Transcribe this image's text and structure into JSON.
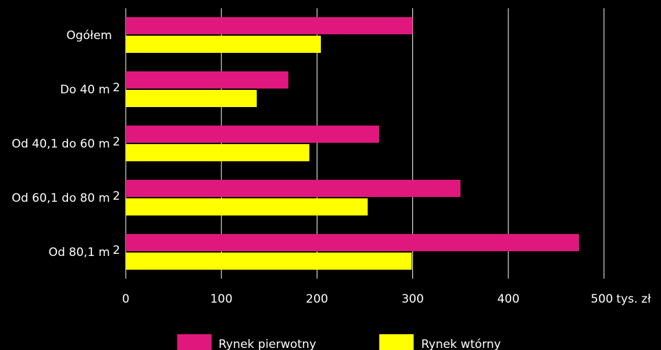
{
  "chart_data": {
    "type": "bar",
    "orientation": "horizontal",
    "categories": [
      "Ogółem",
      "Do 40 m²",
      "Od 40,1 do 60 m²",
      "Od 60,1 do 80 m²",
      "Od 80,1 m²"
    ],
    "category_labels": [
      "Ogółem",
      "Do 40 m",
      "Od 40,1 do 60 m",
      "Od 60,1 do 80 m",
      "Od 80,1 m"
    ],
    "category_superscripts": [
      "",
      "2",
      "2",
      "2",
      "2"
    ],
    "series": [
      {
        "name": "Rynek pierwotny",
        "color": "#e0187e",
        "values": [
          300,
          170,
          265,
          350,
          474
        ]
      },
      {
        "name": "Rynek wtórny",
        "color": "#ffff00",
        "values": [
          204,
          137,
          192,
          253,
          299
        ]
      }
    ],
    "x_ticks": [
      0,
      100,
      200,
      300,
      400,
      500
    ],
    "x_tick_labels": [
      "0",
      "100",
      "200",
      "300",
      "400",
      "500"
    ],
    "x_unit": "tys. zł",
    "xlim": [
      0,
      500
    ],
    "grid": "vertical",
    "legend_position": "bottom",
    "colors": {
      "background": "#000000",
      "grid": "#ffffff",
      "text": "#ffffff"
    }
  }
}
